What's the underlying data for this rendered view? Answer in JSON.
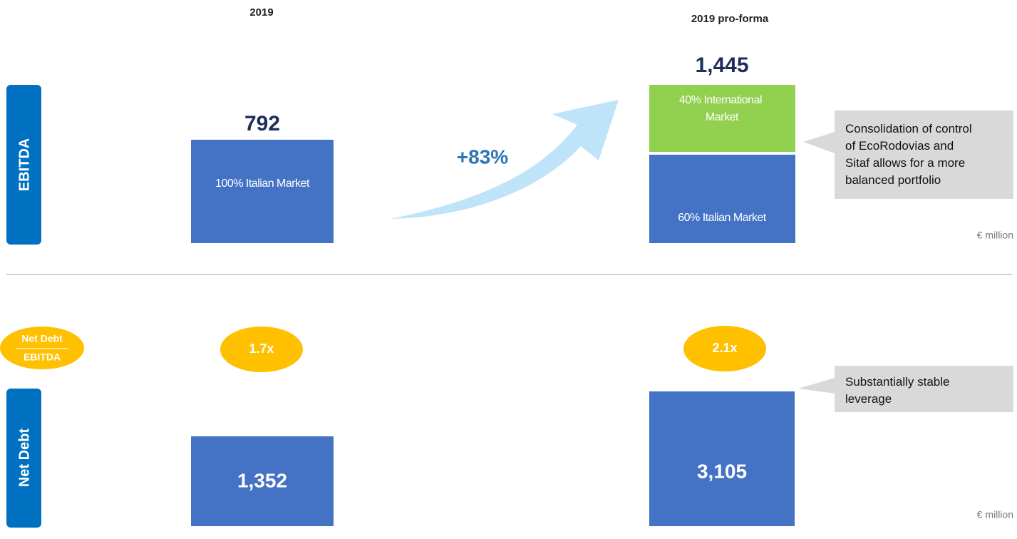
{
  "columns": [
    "2019",
    "2019 pro-forma"
  ],
  "ebitda": {
    "label": "EBITDA",
    "value_2019": "792",
    "value_proforma": "1,445",
    "growth": "+83%",
    "segment_2019": "100% Italian Market",
    "segment_international": [
      "40% International",
      "Market"
    ],
    "segment_italian": "60% Italian Market",
    "callout": [
      "Consolidation of control",
      "of EcoRodovias and",
      "Sitaf allows for a more",
      "balanced portfolio"
    ],
    "unit": "€ million"
  },
  "ratio_label": [
    "Net Debt",
    "EBITDA"
  ],
  "ratios": [
    "1.7x",
    "2.1x"
  ],
  "net_debt": {
    "label": "Net Debt",
    "value_2019": "1,352",
    "value_proforma": "3,105",
    "callout": [
      "Substantially stable",
      "leverage"
    ],
    "unit": "€ million"
  }
}
